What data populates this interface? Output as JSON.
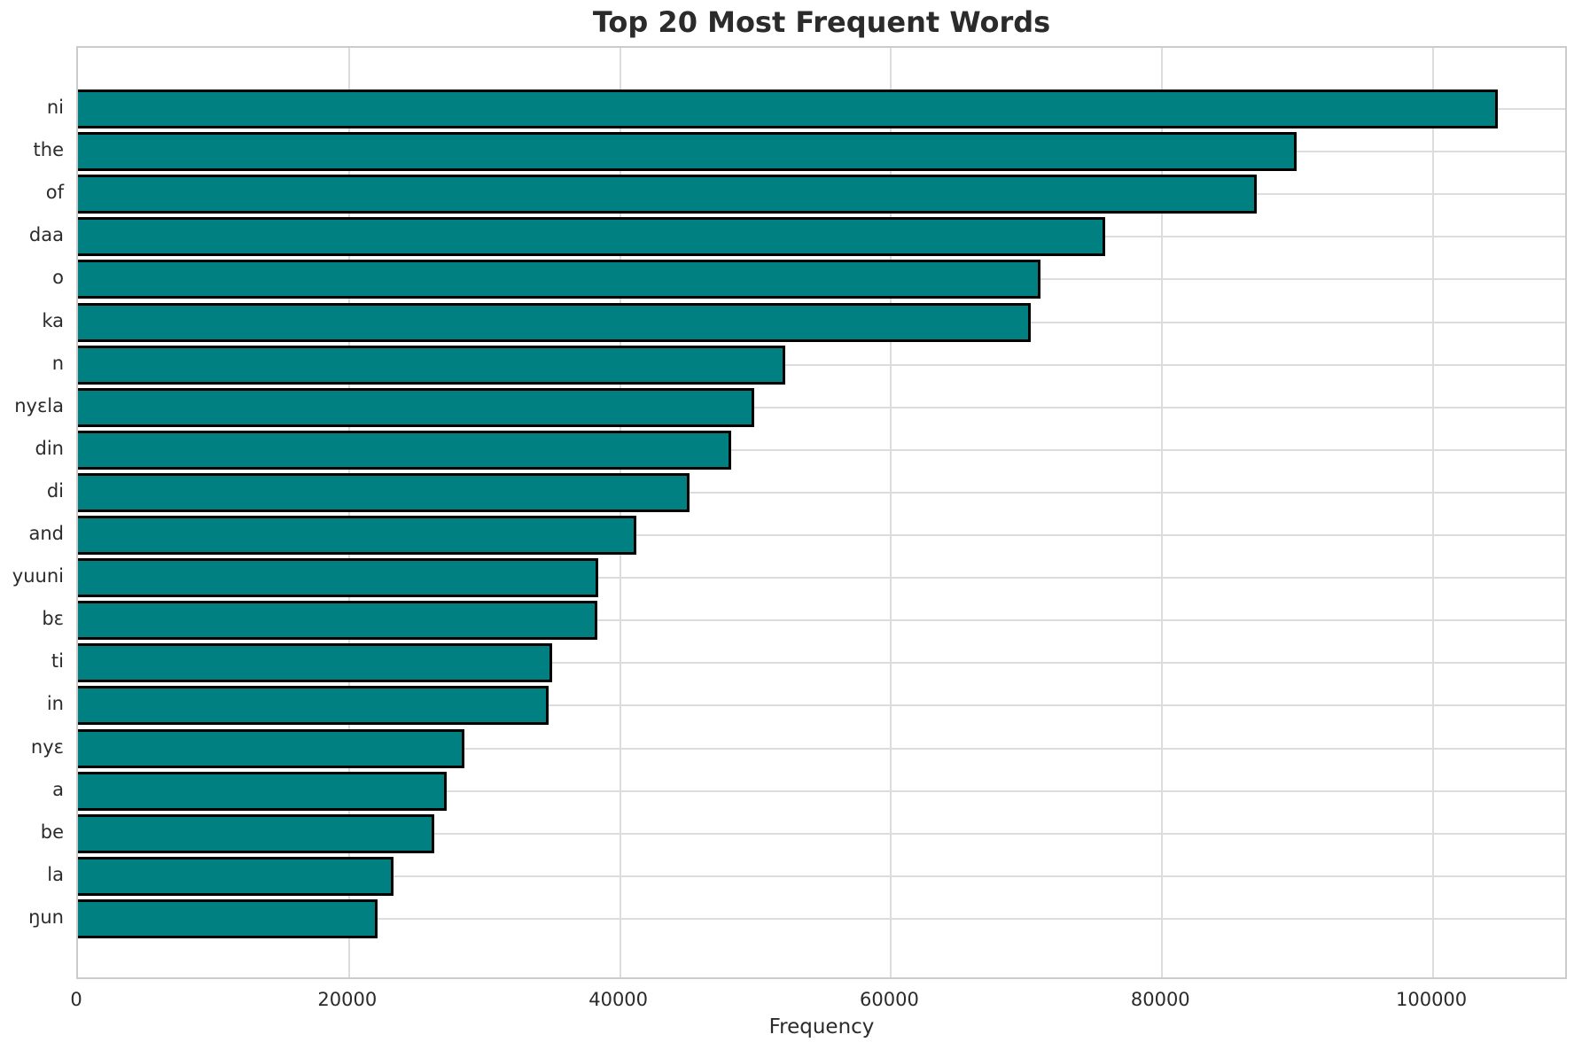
{
  "chart_data": {
    "type": "bar",
    "orientation": "horizontal",
    "title": "Top 20 Most Frequent Words",
    "xlabel": "Frequency",
    "ylabel": "",
    "categories": [
      "ni",
      "the",
      "of",
      "daa",
      "o",
      "ka",
      "n",
      "nyɛla",
      "din",
      "di",
      "and",
      "yuuni",
      "bɛ",
      "ti",
      "in",
      "nyɛ",
      "a",
      "be",
      "la",
      "ŋun"
    ],
    "values": [
      104800,
      89900,
      87000,
      75800,
      71000,
      70300,
      52200,
      49900,
      48200,
      45100,
      41200,
      38400,
      38300,
      35000,
      34700,
      28500,
      27200,
      26300,
      23300,
      22100
    ],
    "xlim": [
      0,
      110000
    ],
    "xticks": [
      0,
      20000,
      40000,
      60000,
      80000,
      100000
    ],
    "xtick_labels": [
      "0",
      "20000",
      "40000",
      "60000",
      "80000",
      "100000"
    ],
    "grid": true,
    "legend": null,
    "bar_color": "#008080",
    "bar_edge_color": "#000000",
    "gridline_color": "#dcdcdc",
    "background_color": "#ffffff",
    "text_color": "#2b2b2b"
  }
}
